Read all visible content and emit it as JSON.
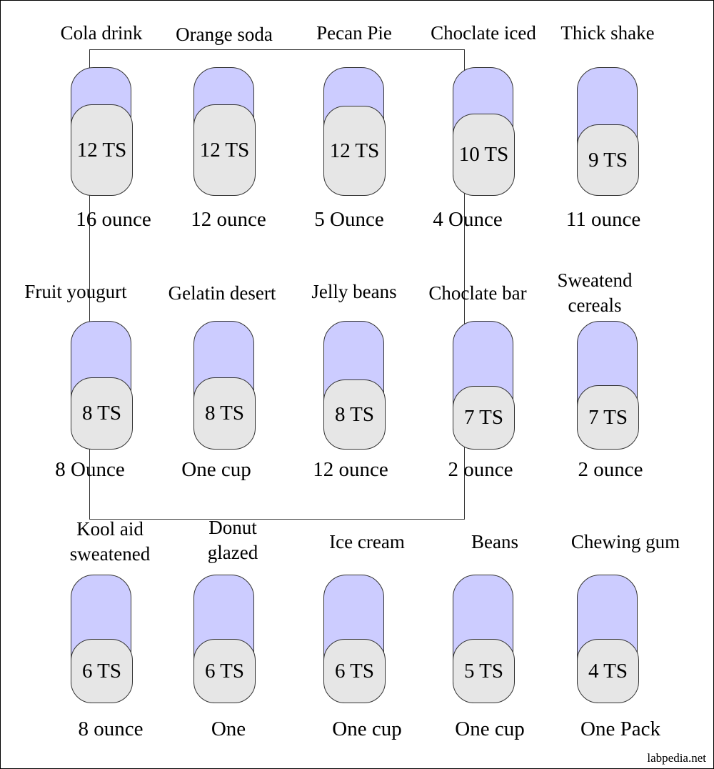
{
  "items": [
    {
      "name": "Cola drink",
      "sugar": "12 TS",
      "amount": "16 ounce"
    },
    {
      "name": "Orange soda",
      "sugar": "12 TS",
      "amount": "12 ounce"
    },
    {
      "name": "Pecan Pie",
      "sugar": "12 TS",
      "amount": "5 Ounce"
    },
    {
      "name": "Choclate iced",
      "sugar": "10 TS",
      "amount": "4 Ounce"
    },
    {
      "name": "Thick shake",
      "sugar": "9 TS",
      "amount": "11 ounce"
    },
    {
      "name": "Fruit yougurt",
      "sugar": "8 TS",
      "amount": "8 Ounce"
    },
    {
      "name": "Gelatin desert",
      "sugar": "8 TS",
      "amount": "One cup"
    },
    {
      "name": "Jelly beans",
      "sugar": "8 TS",
      "amount": "12 ounce"
    },
    {
      "name": "Choclate bar",
      "sugar": "7 TS",
      "amount": "2 ounce"
    },
    {
      "name": "Sweatend cereals",
      "sugar": "7 TS",
      "amount": "2 ounce"
    },
    {
      "name": "Kool aid sweatened",
      "sugar": "6 TS",
      "amount": "8 ounce"
    },
    {
      "name": "Donut glazed",
      "sugar": "6 TS",
      "amount": "One"
    },
    {
      "name": "Ice cream",
      "sugar": "6 TS",
      "amount": "One cup"
    },
    {
      "name": "Beans",
      "sugar": "5 TS",
      "amount": "One cup"
    },
    {
      "name": "Chewing gum",
      "sugar": "4 TS",
      "amount": "One Pack"
    }
  ],
  "watermark": "labpedia.net",
  "colors": {
    "container": "#ccccff",
    "sugar_fill": "#e6e6e6"
  }
}
